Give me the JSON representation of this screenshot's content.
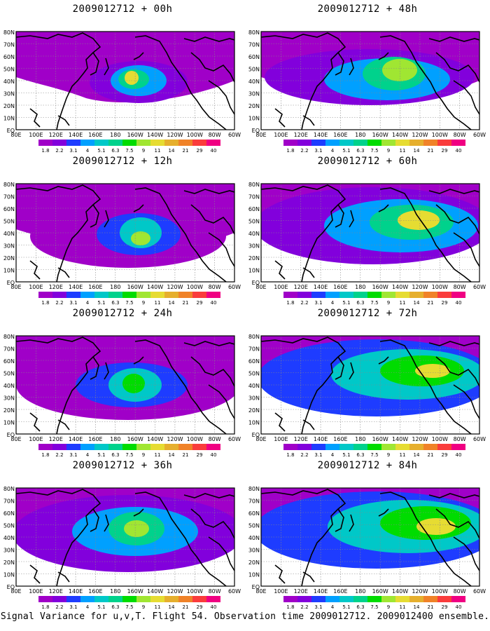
{
  "panels": [
    {
      "title": "2009012712 + 00h",
      "lead": "00h"
    },
    {
      "title": "2009012712 + 48h",
      "lead": "48h"
    },
    {
      "title": "2009012712 + 12h",
      "lead": "12h"
    },
    {
      "title": "2009012712 + 60h",
      "lead": "60h"
    },
    {
      "title": "2009012712 + 24h",
      "lead": "24h"
    },
    {
      "title": "2009012712 + 72h",
      "lead": "72h"
    },
    {
      "title": "2009012712 + 36h",
      "lead": "36h"
    },
    {
      "title": "2009012712 + 84h",
      "lead": "84h"
    }
  ],
  "lat_labels": [
    "80N",
    "70N",
    "60N",
    "50N",
    "40N",
    "30N",
    "20N",
    "10N",
    "EQ"
  ],
  "lon_labels": [
    "80E",
    "100E",
    "120E",
    "140E",
    "160E",
    "180",
    "160W",
    "140W",
    "120W",
    "100W",
    "80W",
    "60W"
  ],
  "colorbar": {
    "labels": [
      "1.8",
      "2.2",
      "3.1",
      "4",
      "5.1",
      "6.3",
      "7.5",
      "9",
      "11",
      "14",
      "21",
      "29",
      "40"
    ],
    "colors": [
      "#a000c8",
      "#8200dc",
      "#1e3cff",
      "#00a0ff",
      "#00c8c8",
      "#00d28c",
      "#00dc00",
      "#a0e632",
      "#e6dc32",
      "#e6af2d",
      "#f08228",
      "#fa3c3c",
      "#f00082"
    ]
  },
  "footer": "Signal Variance for u,v,T. Flight 54. Observation time 2009012712. 2009012400 ensemble."
}
